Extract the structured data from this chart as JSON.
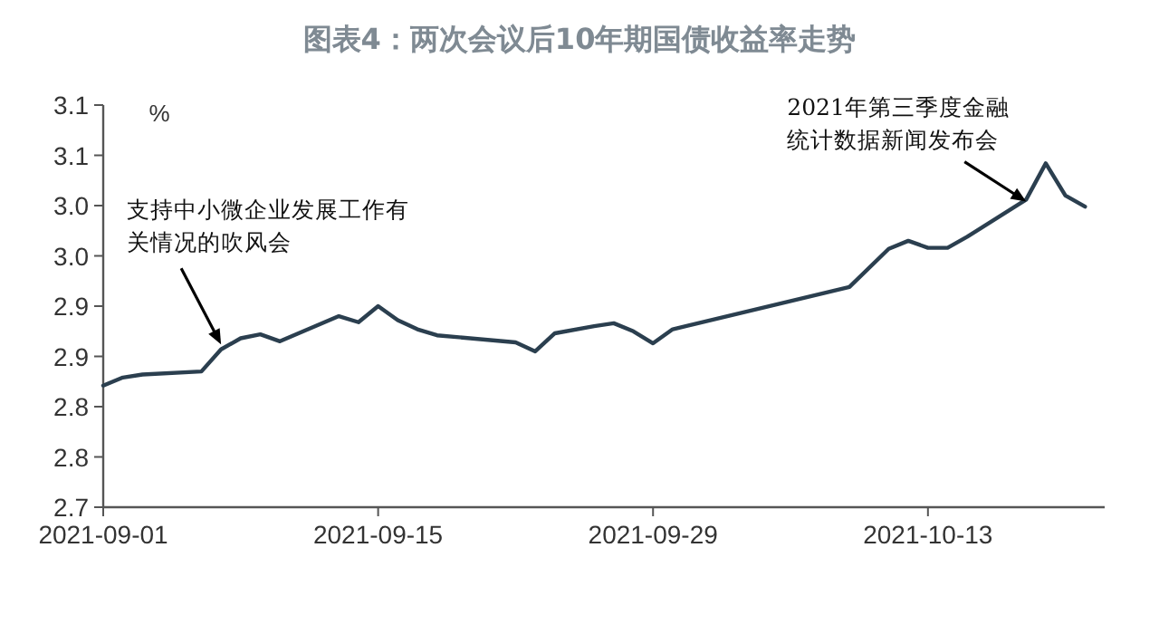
{
  "chart_data": {
    "type": "line",
    "title": "图表4：两次会议后10年期国债收益率走势",
    "ylabel": "%",
    "x": [
      "2021-09-01",
      "2021-09-02",
      "2021-09-03",
      "2021-09-06",
      "2021-09-07",
      "2021-09-08",
      "2021-09-09",
      "2021-09-10",
      "2021-09-13",
      "2021-09-14",
      "2021-09-15",
      "2021-09-16",
      "2021-09-17",
      "2021-09-18",
      "2021-09-22",
      "2021-09-23",
      "2021-09-24",
      "2021-09-26",
      "2021-09-27",
      "2021-09-28",
      "2021-09-29",
      "2021-09-30",
      "2021-10-09",
      "2021-10-11",
      "2021-10-12",
      "2021-10-13",
      "2021-10-14",
      "2021-10-15",
      "2021-10-18",
      "2021-10-19",
      "2021-10-20",
      "2021-10-21"
    ],
    "series": [
      {
        "color": "#2b3f4f",
        "values": [
          2.821,
          2.829,
          2.832,
          2.835,
          2.857,
          2.868,
          2.872,
          2.865,
          2.89,
          2.884,
          2.9,
          2.886,
          2.877,
          2.871,
          2.864,
          2.855,
          2.873,
          2.88,
          2.883,
          2.875,
          2.863,
          2.877,
          2.919,
          2.957,
          2.965,
          2.958,
          2.958,
          2.969,
          3.006,
          3.042,
          3.01,
          2.999
        ]
      }
    ],
    "xlim": [
      "2021-09-01",
      "2021-10-22"
    ],
    "xticks": [
      "2021-09-01",
      "2021-09-15",
      "2021-09-29",
      "2021-10-13"
    ],
    "ylim": [
      2.7,
      3.1
    ],
    "yticks": [
      {
        "value": 2.7,
        "label": "2.7"
      },
      {
        "value": 2.75,
        "label": "2.8"
      },
      {
        "value": 2.8,
        "label": "2.8"
      },
      {
        "value": 2.85,
        "label": "2.9"
      },
      {
        "value": 2.9,
        "label": "2.9"
      },
      {
        "value": 2.95,
        "label": "3.0"
      },
      {
        "value": 3.0,
        "label": "3.0"
      },
      {
        "value": 3.05,
        "label": "3.1"
      },
      {
        "value": 3.1,
        "label": "3.1"
      }
    ],
    "grid": false,
    "marker": "none",
    "line_style": "solid",
    "annotations": [
      {
        "text": "支持中小微企业发展工作有关情况的吹风会",
        "x": "2021-09-07",
        "y": 2.862
      },
      {
        "text": "2021年第三季度金融统计数据新闻发布会",
        "x": "2021-10-18",
        "y": 3.004
      }
    ]
  }
}
